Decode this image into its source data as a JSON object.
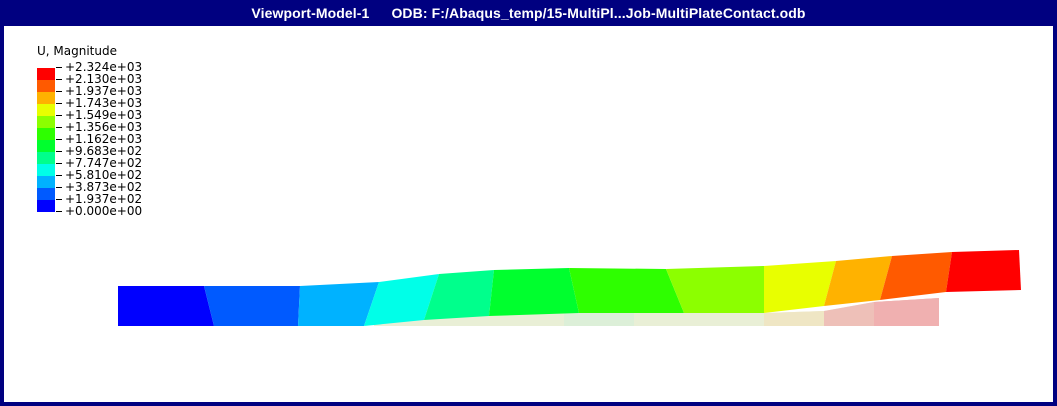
{
  "viewport": {
    "name": "Viewport-Model-1",
    "odb": "ODB: F:/Abaqus_temp/15-MultiPl...Job-MultiPlateContact.odb"
  },
  "legend": {
    "title": "U, Magnitude",
    "labels": [
      "+2.324e+03",
      "+2.130e+03",
      "+1.937e+03",
      "+1.743e+03",
      "+1.549e+03",
      "+1.356e+03",
      "+1.162e+03",
      "+9.683e+02",
      "+7.747e+02",
      "+5.810e+02",
      "+3.873e+02",
      "+1.937e+02",
      "+0.000e+00"
    ],
    "colors": [
      "#ff0000",
      "#ff5a00",
      "#ffb200",
      "#e8ff00",
      "#8cff00",
      "#2eff00",
      "#00ff2e",
      "#00ff8c",
      "#00ffe8",
      "#00b2ff",
      "#005aff",
      "#0000ff"
    ]
  },
  "colors": {
    "frame": "#000080",
    "background": "#ffffff",
    "ghost_plate": "#e8e8c8",
    "ghost_plate_end": "#f0b8b8"
  }
}
